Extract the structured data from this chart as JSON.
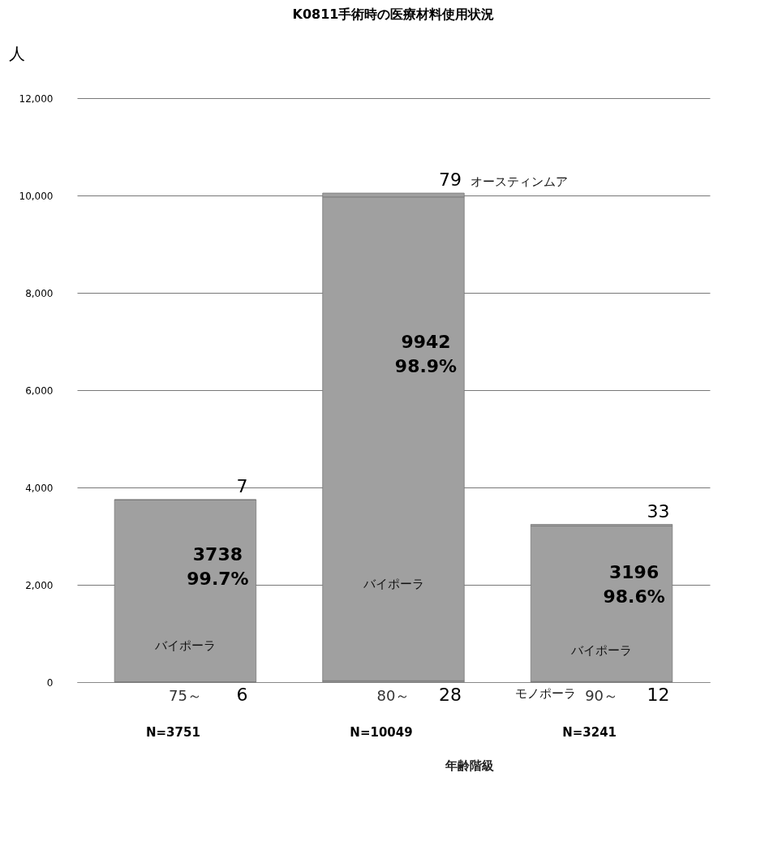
{
  "chart_data": {
    "type": "bar",
    "title": "K0811手術時の医療材料使用状況",
    "ylabel": "人",
    "xlabel": "年齢階級",
    "categories": [
      "75～",
      "80～",
      "90～"
    ],
    "stacked": true,
    "series": [
      {
        "name": "モノポーラ",
        "color": "#a0a0a0",
        "values": [
          6,
          28,
          12
        ],
        "value_labels": [
          "6",
          "28",
          "12"
        ]
      },
      {
        "name": "バイポーラ",
        "color": "#a0a0a0",
        "values": [
          3738,
          9942,
          3196
        ],
        "value_labels": [
          "3738\n99.7%",
          "9942\n98.9%",
          "3196\n98.6%"
        ]
      },
      {
        "name": "オースティンムア",
        "color": "#a0a0a0",
        "values": [
          7,
          79,
          33
        ],
        "value_labels": [
          "7",
          "79",
          "33"
        ]
      }
    ],
    "ylim": [
      0,
      12000
    ],
    "yticks": [
      {
        "value": 0,
        "label": "0"
      },
      {
        "value": 2000,
        "label": "2,000"
      },
      {
        "value": 4000,
        "label": "4,000"
      },
      {
        "value": 6000,
        "label": "6,000"
      },
      {
        "value": 8000,
        "label": "8,000"
      },
      {
        "value": 10000,
        "label": "10,000"
      },
      {
        "value": 12000,
        "label": "12,000"
      }
    ],
    "grid": "y",
    "annotations": [
      "N=3751",
      "N=10049",
      "N=3241"
    ]
  }
}
